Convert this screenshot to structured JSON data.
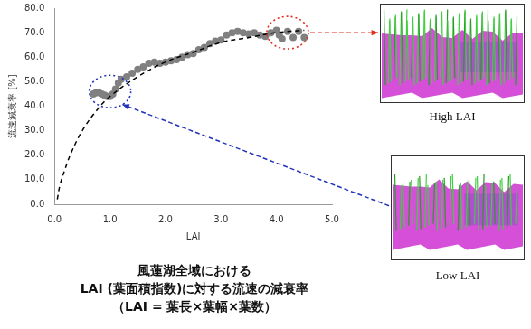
{
  "chart_data": {
    "type": "scatter",
    "title": [
      "風蓮湖全域における",
      "LAI (葉面積指数)に対する流速の減衰率",
      "（LAI = 葉長×葉幅×葉数）"
    ],
    "x_label": "LAI",
    "y_label": "流速減衰率 [%]",
    "xlim": [
      0,
      5
    ],
    "xticks": [
      {
        "value": 0,
        "label": "0.0"
      },
      {
        "value": 1,
        "label": "1.0"
      },
      {
        "value": 2,
        "label": "2.0"
      },
      {
        "value": 3,
        "label": "3.0"
      },
      {
        "value": 4,
        "label": "4.0"
      },
      {
        "value": 5,
        "label": "5.0"
      }
    ],
    "ylim": [
      0,
      80
    ],
    "yticks": [
      {
        "value": 0,
        "label": "0.0"
      },
      {
        "value": 10,
        "label": "10.0"
      },
      {
        "value": 20,
        "label": "20.0"
      },
      {
        "value": 30,
        "label": "30.0"
      },
      {
        "value": 40,
        "label": "40.0"
      },
      {
        "value": 50,
        "label": "50.0"
      },
      {
        "value": 60,
        "label": "60.0"
      },
      {
        "value": 70,
        "label": "70.0"
      },
      {
        "value": 80,
        "label": "80.0"
      }
    ],
    "grid": false,
    "series": [
      {
        "type": "scatter",
        "color": "#808080",
        "marker": "circle",
        "x": [
          0.7,
          0.75,
          0.8,
          0.85,
          0.9,
          0.95,
          1.0,
          1.05,
          1.1,
          1.15,
          1.2,
          1.3,
          1.4,
          1.5,
          1.6,
          1.7,
          1.8,
          1.9,
          2.0,
          2.1,
          2.2,
          2.3,
          2.4,
          2.5,
          2.6,
          2.7,
          2.8,
          2.9,
          3.0,
          3.1,
          3.2,
          3.3,
          3.4,
          3.5,
          3.6,
          3.7,
          3.8,
          3.9,
          4.0,
          4.05,
          4.1,
          4.2,
          4.3,
          4.4,
          4.5
        ],
        "values": [
          45,
          45.5,
          45.5,
          45,
          44.5,
          44,
          44,
          45,
          47,
          49.5,
          51,
          52,
          53.5,
          55,
          56,
          57.5,
          58,
          57.5,
          58,
          58.5,
          59,
          60,
          61,
          61.5,
          63,
          64,
          65.5,
          66.5,
          67,
          69,
          70,
          70.5,
          70,
          69.5,
          70,
          69,
          68.5,
          70,
          71,
          69,
          67.5,
          70.5,
          68,
          70.5,
          68
        ]
      },
      {
        "type": "line",
        "color": "#000000",
        "line_style": "dashed",
        "marker": "none",
        "x": [
          0.05,
          0.1,
          0.2,
          0.3,
          0.5,
          0.75,
          1.0,
          1.5,
          2.0,
          2.5,
          3.0,
          3.5,
          4.0,
          4.5
        ],
        "values": [
          2,
          8,
          15,
          21,
          30,
          38,
          44,
          52,
          58,
          62,
          66,
          68,
          70,
          71
        ]
      }
    ],
    "annotations": [
      {
        "x": 4.2,
        "y": 70,
        "color": "#e03020",
        "line_style": "dotted",
        "label": "High LAI"
      },
      {
        "x": 1.0,
        "y": 46,
        "color": "#2233bb",
        "line_style": "dotted",
        "label": "Low LAI"
      }
    ]
  }
}
